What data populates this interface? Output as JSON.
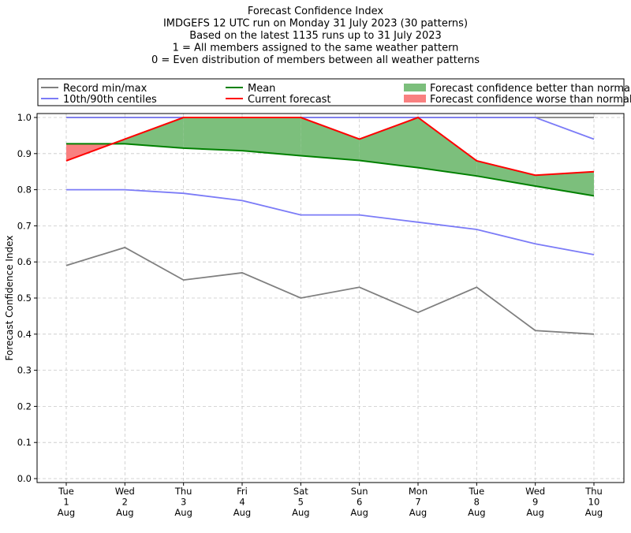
{
  "chart_data": {
    "type": "line",
    "title_lines": [
      "Forecast Confidence Index",
      "IMDGEFS 12 UTC run on Monday 31 July 2023 (30 patterns)",
      "Based on the latest 1135 runs up to 31 July 2023",
      "1 = All members assigned to the same weather pattern",
      "0 = Even distribution of members between all weather patterns"
    ],
    "ylabel": "Forecast Confidence Index",
    "xlabel": "",
    "ylim": [
      0,
      1
    ],
    "yticks": [
      "0.0",
      "0.1",
      "0.2",
      "0.3",
      "0.4",
      "0.5",
      "0.6",
      "0.7",
      "0.8",
      "0.9",
      "1.0"
    ],
    "categories": [
      [
        "Tue",
        "1",
        "Aug"
      ],
      [
        "Wed",
        "2",
        "Aug"
      ],
      [
        "Thu",
        "3",
        "Aug"
      ],
      [
        "Fri",
        "4",
        "Aug"
      ],
      [
        "Sat",
        "5",
        "Aug"
      ],
      [
        "Sun",
        "6",
        "Aug"
      ],
      [
        "Mon",
        "7",
        "Aug"
      ],
      [
        "Tue",
        "8",
        "Aug"
      ],
      [
        "Wed",
        "9",
        "Aug"
      ],
      [
        "Thu",
        "10",
        "Aug"
      ]
    ],
    "grid": true,
    "legend_position": "top",
    "series": [
      {
        "name": "Record min/max",
        "key": "record_min",
        "color": "#7f7f7f",
        "values": [
          0.59,
          0.64,
          0.55,
          0.57,
          0.5,
          0.53,
          0.46,
          0.53,
          0.41,
          0.4
        ]
      },
      {
        "name": "",
        "key": "record_max",
        "color": "#7f7f7f",
        "values": [
          1.0,
          1.0,
          1.0,
          1.0,
          1.0,
          1.0,
          1.0,
          1.0,
          1.0,
          1.0
        ]
      },
      {
        "name": "10th/90th centiles",
        "key": "p10",
        "color": "#7b7bf7",
        "values": [
          0.8,
          0.8,
          0.79,
          0.77,
          0.73,
          0.73,
          0.71,
          0.69,
          0.65,
          0.62
        ]
      },
      {
        "name": "",
        "key": "p90",
        "color": "#7b7bf7",
        "values": [
          1.0,
          1.0,
          1.0,
          1.0,
          1.0,
          1.0,
          1.0,
          1.0,
          1.0,
          0.94
        ]
      },
      {
        "name": "Mean",
        "key": "mean",
        "color": "#008000",
        "values": [
          0.927,
          0.927,
          0.915,
          0.908,
          0.894,
          0.881,
          0.861,
          0.838,
          0.81,
          0.783
        ]
      },
      {
        "name": "Current forecast",
        "key": "current",
        "color": "#ff0000",
        "values": [
          0.88,
          0.94,
          1.0,
          1.0,
          1.0,
          0.94,
          1.0,
          0.88,
          0.84,
          0.85
        ]
      }
    ],
    "fills": [
      {
        "name": "Forecast confidence better than normal",
        "color": "#7cbf7c"
      },
      {
        "name": "Forecast confidence worse than normal",
        "color": "#f98080"
      }
    ]
  }
}
